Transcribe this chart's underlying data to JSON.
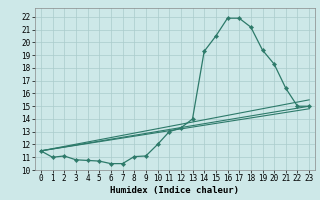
{
  "title": "",
  "xlabel": "Humidex (Indice chaleur)",
  "ylabel": "",
  "bg_color": "#cde8e8",
  "grid_color": "#aacccc",
  "line_color": "#2d7a6a",
  "x_ticks": [
    0,
    1,
    2,
    3,
    4,
    5,
    6,
    7,
    8,
    9,
    10,
    11,
    12,
    13,
    14,
    15,
    16,
    17,
    18,
    19,
    20,
    21,
    22,
    23
  ],
  "y_ticks": [
    10,
    11,
    12,
    13,
    14,
    15,
    16,
    17,
    18,
    19,
    20,
    21,
    22
  ],
  "xlim": [
    -0.5,
    23.5
  ],
  "ylim": [
    10.0,
    22.7
  ],
  "series_main": {
    "x": [
      0,
      1,
      2,
      3,
      4,
      5,
      6,
      7,
      8,
      9,
      10,
      11,
      12,
      13,
      14,
      15,
      16,
      17,
      18,
      19,
      20,
      21,
      22,
      23
    ],
    "y": [
      11.5,
      11.0,
      11.1,
      10.8,
      10.75,
      10.7,
      10.5,
      10.5,
      11.05,
      11.1,
      12.0,
      13.0,
      13.3,
      14.0,
      19.3,
      20.5,
      21.9,
      21.9,
      21.2,
      19.4,
      18.3,
      16.4,
      15.0,
      15.0
    ]
  },
  "series_lines": [
    {
      "x": [
        0,
        23
      ],
      "y": [
        11.5,
        15.0
      ]
    },
    {
      "x": [
        0,
        23
      ],
      "y": [
        11.5,
        15.0
      ]
    },
    {
      "x": [
        0,
        23
      ],
      "y": [
        11.5,
        15.0
      ]
    }
  ],
  "series_extra": [
    {
      "x": [
        0,
        9,
        12,
        23
      ],
      "y": [
        11.5,
        12.0,
        13.3,
        16.5
      ]
    },
    {
      "x": [
        0,
        9,
        12,
        23
      ],
      "y": [
        11.5,
        11.8,
        12.5,
        15.0
      ]
    },
    {
      "x": [
        0,
        9,
        12,
        23
      ],
      "y": [
        11.5,
        11.5,
        12.0,
        14.8
      ]
    }
  ]
}
